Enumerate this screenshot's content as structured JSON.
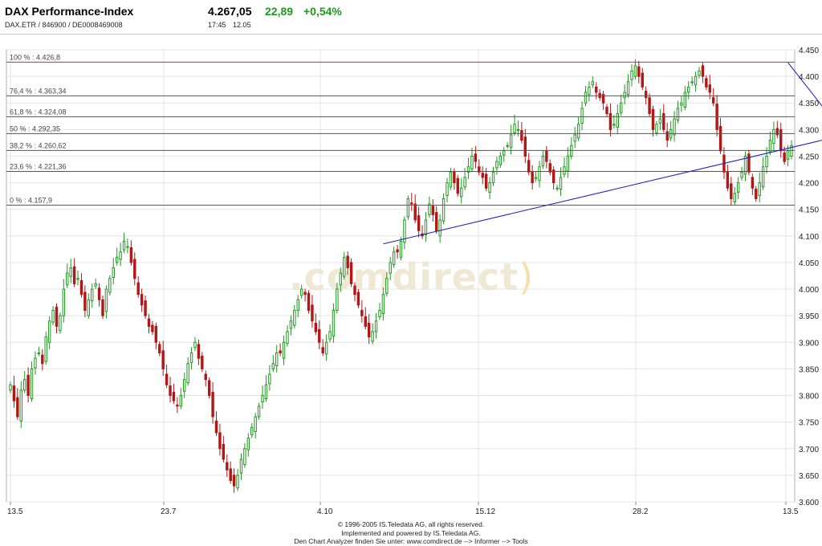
{
  "header": {
    "title": "DAX Performance-Index",
    "subtitle": "DAX.ETR / 846900 / DE0008469008",
    "price": "4.267,05",
    "change": "22,89",
    "change_pct": "+0,54%",
    "time": "17:45",
    "date": "12.05"
  },
  "watermark": {
    "text": ".comdirect",
    "paren": ")"
  },
  "footer": {
    "line1": "© 1996-2005 IS.Teledata AG, all rights reserved.",
    "line2": "Implemented and powered by IS.Teledata AG.",
    "line3": "Den Chart Analyzer finden Sie unter: www.comdirect.de --> Informer --> Tools"
  },
  "colors": {
    "up": "#1f9a1f",
    "down": "#b01818",
    "fib_extreme": "#c03030",
    "fib": "#555555",
    "trend": "#1a1acc"
  },
  "chart_data": {
    "type": "candlestick",
    "ylim": [
      3600,
      4450
    ],
    "yticks": [
      3600,
      3650,
      3700,
      3750,
      3800,
      3850,
      3900,
      3950,
      4000,
      4050,
      4100,
      4150,
      4200,
      4250,
      4300,
      4350,
      4400,
      4450
    ],
    "ytick_labels": [
      "3.600",
      "3.650",
      "3.700",
      "3.750",
      "3.800",
      "3.850",
      "3.900",
      "3.950",
      "4.000",
      "4.050",
      "4.100",
      "4.150",
      "4.200",
      "4.250",
      "4.300",
      "4.350",
      "4.400",
      "4.450"
    ],
    "xticks": [
      "13.5",
      "23.7",
      "4.10",
      "15.12",
      "28.2",
      "13.5"
    ],
    "grid": true,
    "fibonacci": [
      {
        "label": "100 % : 4.426,8",
        "value": 4426.8
      },
      {
        "label": "76,4 % : 4.363,34",
        "value": 4363.34
      },
      {
        "label": "61,8 % : 4.324,08",
        "value": 4324.08
      },
      {
        "label": "50 % : 4.292,35",
        "value": 4292.35
      },
      {
        "label": "38,2 % : 4.260,62",
        "value": 4260.62
      },
      {
        "label": "23,6 % : 4.221,36",
        "value": 4221.36
      },
      {
        "label": "0 % : 4.157,9",
        "value": 4157.9
      }
    ],
    "trendlines": [
      {
        "from": [
          105,
          4085
        ],
        "to": [
          235,
          4290
        ]
      },
      {
        "from": [
          219,
          4426
        ],
        "to": [
          235,
          4290
        ]
      }
    ],
    "closes": [
      3820,
      3790,
      3760,
      3810,
      3830,
      3800,
      3850,
      3870,
      3880,
      3860,
      3910,
      3940,
      3960,
      3930,
      3950,
      4000,
      4030,
      4040,
      4010,
      4020,
      3990,
      3960,
      3980,
      4000,
      4010,
      3980,
      3950,
      4000,
      4020,
      4040,
      4060,
      4070,
      4090,
      4080,
      4050,
      4020,
      3990,
      3970,
      3950,
      3930,
      3920,
      3900,
      3880,
      3850,
      3820,
      3800,
      3790,
      3780,
      3800,
      3830,
      3860,
      3880,
      3900,
      3870,
      3850,
      3830,
      3800,
      3760,
      3730,
      3700,
      3680,
      3660,
      3640,
      3630,
      3650,
      3680,
      3700,
      3720,
      3740,
      3760,
      3780,
      3800,
      3820,
      3840,
      3860,
      3880,
      3880,
      3900,
      3920,
      3940,
      3960,
      3980,
      4000,
      3990,
      3960,
      3940,
      3920,
      3900,
      3880,
      3900,
      3920,
      3960,
      4000,
      4030,
      4060,
      4040,
      4010,
      3990,
      3970,
      3950,
      3930,
      3910,
      3920,
      3940,
      3960,
      3990,
      4020,
      4050,
      4070,
      4070,
      4090,
      4130,
      4170,
      4160,
      4130,
      4110,
      4100,
      4130,
      4160,
      4140,
      4110,
      4130,
      4170,
      4200,
      4220,
      4200,
      4180,
      4190,
      4210,
      4230,
      4250,
      4240,
      4220,
      4210,
      4190,
      4200,
      4220,
      4240,
      4250,
      4260,
      4270,
      4290,
      4310,
      4300,
      4280,
      4250,
      4220,
      4200,
      4210,
      4230,
      4250,
      4240,
      4220,
      4200,
      4190,
      4210,
      4230,
      4250,
      4270,
      4290,
      4310,
      4340,
      4370,
      4380,
      4390,
      4370,
      4360,
      4350,
      4330,
      4300,
      4310,
      4330,
      4350,
      4370,
      4390,
      4410,
      4420,
      4400,
      4380,
      4360,
      4330,
      4300,
      4310,
      4320,
      4300,
      4280,
      4300,
      4320,
      4340,
      4350,
      4370,
      4380,
      4390,
      4400,
      4410,
      4400,
      4380,
      4370,
      4350,
      4300,
      4260,
      4220,
      4190,
      4170,
      4180,
      4200,
      4220,
      4250,
      4220,
      4190,
      4170,
      4200,
      4230,
      4250,
      4280,
      4300,
      4290,
      4260,
      4240,
      4260,
      4270
    ]
  }
}
